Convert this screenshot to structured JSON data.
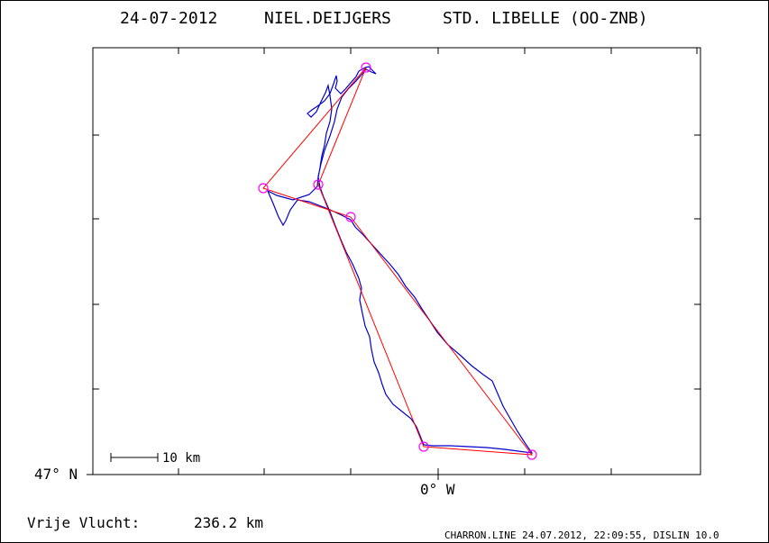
{
  "header": {
    "date": "24-07-2012",
    "pilot": "NIEL.DEIJGERS",
    "glider": "STD. LIBELLE (OO-ZNB)"
  },
  "axes": {
    "y_tick_label": "47° N",
    "x_tick_label": "0° W"
  },
  "scale_bar_label": "10 km",
  "footer": {
    "distance_label": "Vrije Vlucht:",
    "distance_value": "236.2 km",
    "credit": "CHARRON.LINE 24.07.2012, 22:09:55, DISLIN 10.0"
  },
  "colors": {
    "track": "#0000cc",
    "task": "#ff0000",
    "turnpoint": "#ff00ff"
  },
  "chart_data": {
    "type": "line",
    "series": [
      {
        "values": []
      },
      {
        "values": []
      }
    ]
  }
}
